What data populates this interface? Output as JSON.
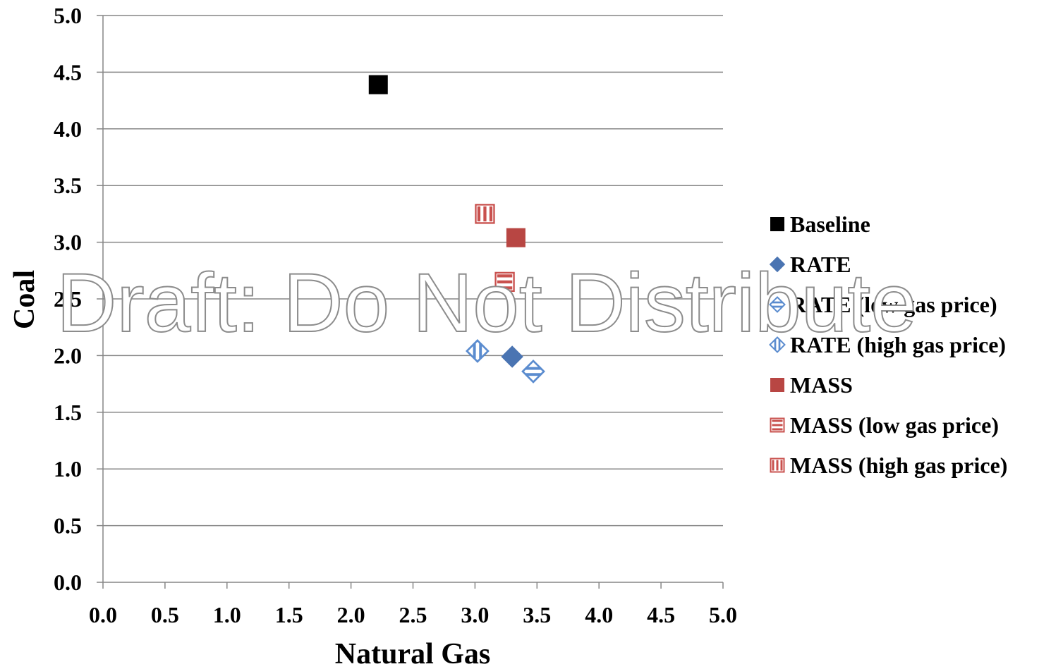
{
  "chart_data": {
    "type": "scatter",
    "xlabel": "Natural Gas",
    "ylabel": "Coal",
    "xlim": [
      0,
      5
    ],
    "ylim": [
      0,
      5
    ],
    "x_ticks": [
      "0.0",
      "0.5",
      "1.0",
      "1.5",
      "2.0",
      "2.5",
      "3.0",
      "3.5",
      "4.0",
      "4.5",
      "5.0"
    ],
    "y_ticks": [
      "0.0",
      "0.5",
      "1.0",
      "1.5",
      "2.0",
      "2.5",
      "3.0",
      "3.5",
      "4.0",
      "4.5",
      "5.0"
    ],
    "grid": "horizontal",
    "legend_position": "right",
    "series": [
      {
        "name": "Baseline",
        "marker": "square",
        "fill": "solid",
        "color": "#000000",
        "x": [
          2.22
        ],
        "y": [
          4.39
        ]
      },
      {
        "name": "RATE",
        "marker": "diamond",
        "fill": "solid",
        "color": "#4a74b2",
        "x": [
          3.3
        ],
        "y": [
          1.99
        ]
      },
      {
        "name": "RATE (low gas price)",
        "marker": "diamond",
        "fill": "horizontal-stripe",
        "color": "#5b8ccf",
        "x": [
          3.47
        ],
        "y": [
          1.86
        ]
      },
      {
        "name": "RATE (high gas price)",
        "marker": "diamond",
        "fill": "vertical-stripe",
        "color": "#5b8ccf",
        "x": [
          3.02
        ],
        "y": [
          2.04
        ]
      },
      {
        "name": "MASS",
        "marker": "square",
        "fill": "solid",
        "color": "#b84643",
        "x": [
          3.33
        ],
        "y": [
          3.04
        ]
      },
      {
        "name": "MASS (low gas price)",
        "marker": "square",
        "fill": "horizontal-stripe",
        "color": "#c9514e",
        "x": [
          3.24
        ],
        "y": [
          2.65
        ]
      },
      {
        "name": "MASS (high gas price)",
        "marker": "square",
        "fill": "vertical-stripe",
        "color": "#c9514e",
        "x": [
          3.08
        ],
        "y": [
          3.25
        ]
      }
    ]
  },
  "watermark": "Draft: Do Not Distribute"
}
